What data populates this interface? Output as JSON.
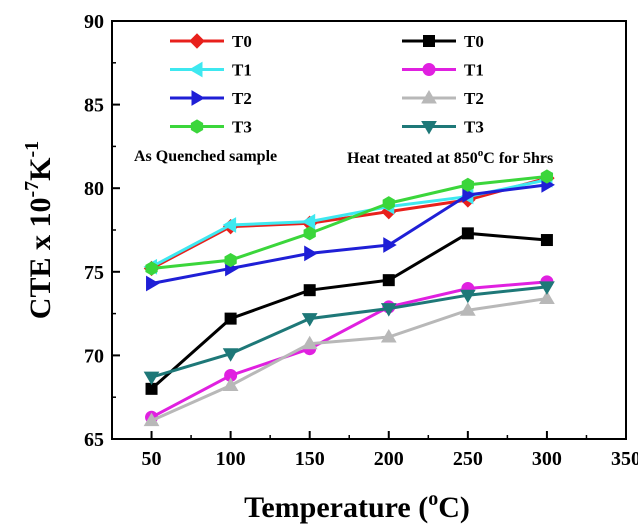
{
  "chart_data": {
    "type": "line",
    "xlabel": {
      "main": "Temperature (",
      "sup": "o",
      "end": "C)"
    },
    "ylabel": {
      "main": "CTE x 10",
      "sup1": "-7",
      "mid": "K",
      "sup2": "-1"
    },
    "xlim": [
      25,
      350
    ],
    "ylim": [
      65,
      90
    ],
    "xticks": [
      50,
      100,
      150,
      200,
      250,
      300,
      350
    ],
    "yticks": [
      65,
      70,
      75,
      80,
      85,
      90
    ],
    "x": [
      50,
      100,
      150,
      200,
      250,
      300
    ],
    "grid": false,
    "groups": [
      {
        "annotation": "As Quenched sample",
        "legend_position": "top-left",
        "series": [
          {
            "name": "T0",
            "color": "#e8201c",
            "marker": "diamond",
            "values": [
              75.2,
              77.7,
              77.9,
              78.6,
              79.3,
              80.6
            ]
          },
          {
            "name": "T1",
            "color": "#3ee8f0",
            "marker": "triangle-left",
            "values": [
              75.3,
              77.8,
              78.0,
              78.9,
              79.5,
              80.5
            ]
          },
          {
            "name": "T2",
            "color": "#1f1fd6",
            "marker": "triangle-right",
            "values": [
              74.3,
              75.2,
              76.1,
              76.6,
              79.6,
              80.2
            ]
          },
          {
            "name": "T3",
            "color": "#3bd63b",
            "marker": "hexagon",
            "values": [
              75.2,
              75.7,
              77.3,
              79.1,
              80.2,
              80.7
            ]
          }
        ]
      },
      {
        "annotation": {
          "main": "Heat treated at 850",
          "sup": "o",
          "end": "C for 5hrs"
        },
        "legend_position": "top-center",
        "series": [
          {
            "name": "T0",
            "color": "#000000",
            "marker": "square",
            "values": [
              68.0,
              72.2,
              73.9,
              74.5,
              77.3,
              76.9
            ]
          },
          {
            "name": "T1",
            "color": "#e020e0",
            "marker": "circle",
            "values": [
              66.3,
              68.8,
              70.4,
              72.9,
              74.0,
              74.4
            ]
          },
          {
            "name": "T2",
            "color": "#b8b8b8",
            "marker": "triangle-up",
            "values": [
              66.1,
              68.2,
              70.7,
              71.1,
              72.7,
              73.4
            ]
          },
          {
            "name": "T3",
            "color": "#1e7878",
            "marker": "triangle-down",
            "values": [
              68.7,
              70.1,
              72.2,
              72.8,
              73.6,
              74.1
            ]
          }
        ]
      }
    ]
  }
}
